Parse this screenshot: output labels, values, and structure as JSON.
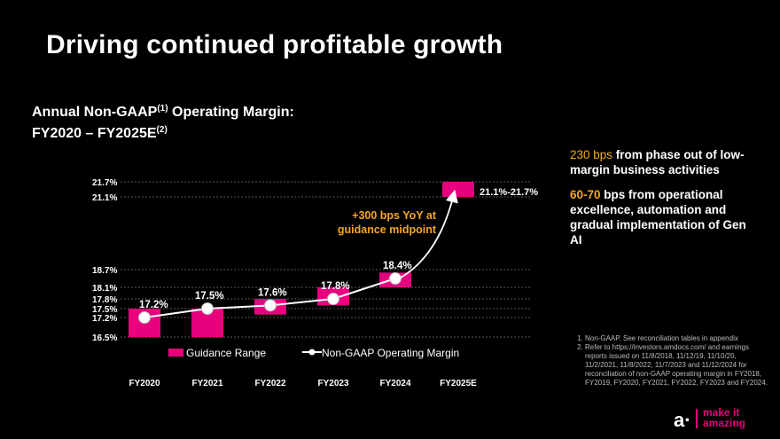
{
  "title": "Driving continued profitable growth",
  "subtitle": {
    "line1_a": "Annual Non-GAAP",
    "line1_sup": "(1)",
    "line1_b": " Operating Margin:",
    "line2_a": "FY2020 – FY2025E",
    "line2_sup": "(2)"
  },
  "callouts": {
    "c1_accent": "230 bps",
    "c1_text": " from phase out of low-margin business activities",
    "c2_accent": "60-70",
    "c2_text": " bps from operational excellence, automation and gradual implementation of Gen AI"
  },
  "annotation": {
    "line1": "+300 bps YoY at",
    "line2": "guidance midpoint"
  },
  "notes": [
    "Non-GAAP. See reconciliation tables in appendix",
    "Refer to https://investors.amdocs.com/ and earnings reports issued on 11/8/2018, 11/12/19, 11/10/20, 11/2/2021, 11/8/2022, 11/7/2023 and 11/12/2024 for reconciliation of non-GAAP operating margin in FY2018, FY2019, FY2020, FY2021, FY2022, FY2023 and FY2024."
  ],
  "logo": {
    "mark": "a·",
    "tag_line1": "make it",
    "tag_line2": "amazing"
  },
  "colors": {
    "background": "#000000",
    "guidance": "#e6007e",
    "accent": "#f5a623",
    "text": "#ffffff"
  },
  "chart_data": {
    "type": "bar",
    "title": "Annual Non-GAAP Operating Margin",
    "categories": [
      "FY2020",
      "FY2021",
      "FY2022",
      "FY2023",
      "FY2024",
      "FY2025E"
    ],
    "ytick_labels": [
      "16.5%",
      "17.2%",
      "17.5%",
      "17.8%",
      "18.1%",
      "18.7%",
      "21.1%",
      "21.7%"
    ],
    "ytick_values": [
      16.5,
      17.2,
      17.5,
      17.8,
      18.1,
      18.7,
      21.1,
      21.7
    ],
    "ylim": [
      16.5,
      21.7
    ],
    "series": [
      {
        "name": "Guidance Range",
        "kind": "range-bar",
        "ranges": [
          [
            16.5,
            17.5
          ],
          [
            16.5,
            17.5
          ],
          [
            17.3,
            17.8
          ],
          [
            17.6,
            18.1
          ],
          [
            18.1,
            18.6
          ],
          [
            21.1,
            21.7
          ]
        ]
      },
      {
        "name": "Non-GAAP Operating Margin",
        "kind": "line",
        "values": [
          17.2,
          17.5,
          17.6,
          17.8,
          18.4,
          null
        ],
        "labels": [
          "17.2%",
          "17.5%",
          "17.6%",
          "17.8%",
          "18.4%",
          ""
        ]
      }
    ],
    "range_label": "21.1%-21.7%",
    "legend": [
      "Guidance Range",
      "Non-GAAP Operating Margin"
    ],
    "legend_position": "bottom",
    "grid": "dashed"
  }
}
